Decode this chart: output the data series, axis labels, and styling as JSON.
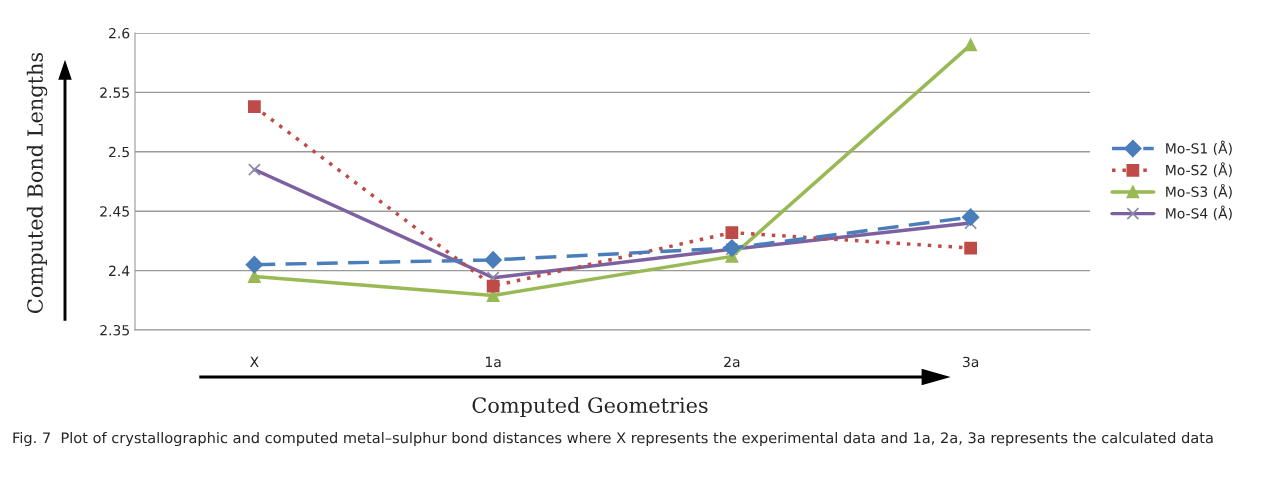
{
  "chart_data": {
    "type": "line",
    "xlabel": "Computed Geometries",
    "ylabel": "Computed Bond Lengths",
    "categories": [
      "X",
      "1a",
      "2a",
      "3a"
    ],
    "series": [
      {
        "name": "Mo-S1 (Å)",
        "color": "#4a7ebb",
        "values": [
          2.405,
          2.409,
          2.419,
          2.445
        ],
        "marker": "diamond",
        "line_style": "dashed"
      },
      {
        "name": "Mo-S2 (Å)",
        "color": "#be4b48",
        "values": [
          2.538,
          2.387,
          2.432,
          2.419
        ],
        "marker": "square",
        "line_style": "dotted"
      },
      {
        "name": "Mo-S3 (Å)",
        "color": "#98b954",
        "values": [
          2.395,
          2.379,
          2.412,
          2.59
        ],
        "marker": "triangle",
        "line_style": "solid"
      },
      {
        "name": "Mo-S4 (Å)",
        "color": "#7d60a0",
        "values": [
          2.485,
          2.394,
          2.418,
          2.44
        ],
        "marker": "cross",
        "line_style": "solid"
      }
    ],
    "ylim": [
      2.35,
      2.6
    ],
    "yticks": [
      2.35,
      2.4,
      2.45,
      2.5,
      2.55,
      2.6
    ],
    "grid": "y",
    "legend": "right",
    "annotations": [
      "Fig. 7  Plot of crystallographic and computed metal–sulphur bond distances where X represents the experimental data and 1a, 2a, 3a represents the calculated data"
    ]
  }
}
